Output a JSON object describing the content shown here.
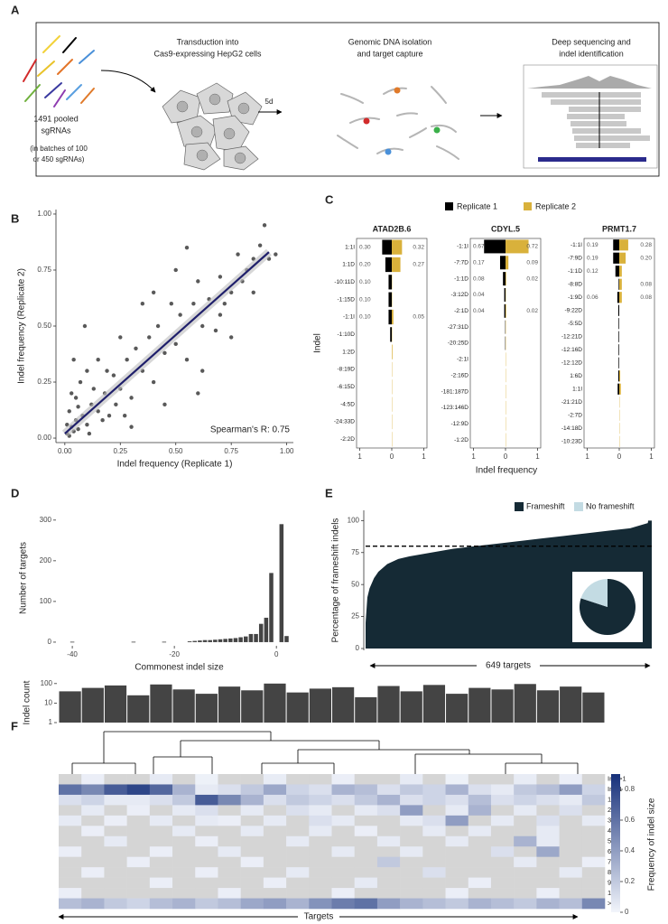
{
  "panel_labels": [
    "A",
    "B",
    "C",
    "D",
    "E",
    "F"
  ],
  "diagram": {
    "pool": [
      "1491 pooled",
      "sgRNAs"
    ],
    "batches": [
      "(in batches of 100",
      "or 450 sgRNAs)"
    ],
    "transduction": [
      "Transduction into",
      "Cas9-expressing HepG2 cells"
    ],
    "time": "5d",
    "capture": [
      "Genomic DNA isolation",
      "and target capture"
    ],
    "sequencing": [
      "Deep sequencing and",
      "indel identification"
    ]
  },
  "chart_data": [
    {
      "type": "scatter",
      "color": "#222222",
      "x": [
        0.01,
        0.02,
        0.03,
        0.04,
        0.05,
        0.06,
        0.08,
        0.1,
        0.12,
        0.02,
        0.03,
        0.05,
        0.07,
        0.1,
        0.04,
        0.09,
        0.15,
        0.18,
        0.2,
        0.22,
        0.25,
        0.28,
        0.3,
        0.32,
        0.35,
        0.38,
        0.4,
        0.42,
        0.45,
        0.48,
        0.5,
        0.52,
        0.55,
        0.58,
        0.6,
        0.62,
        0.65,
        0.68,
        0.7,
        0.72,
        0.75,
        0.78,
        0.8,
        0.82,
        0.85,
        0.88,
        0.9,
        0.92,
        0.3,
        0.45,
        0.6,
        0.75,
        0.5,
        0.55,
        0.35,
        0.25,
        0.15,
        0.01,
        0.06,
        0.11,
        0.13,
        0.17,
        0.19,
        0.23,
        0.27,
        0.4,
        0.62,
        0.7,
        0.85,
        0.95
      ],
      "y": [
        0.02,
        0.01,
        0.05,
        0.03,
        0.08,
        0.04,
        0.1,
        0.06,
        0.15,
        0.12,
        0.2,
        0.18,
        0.25,
        0.3,
        0.35,
        0.5,
        0.12,
        0.2,
        0.1,
        0.28,
        0.22,
        0.35,
        0.18,
        0.4,
        0.3,
        0.45,
        0.25,
        0.5,
        0.38,
        0.6,
        0.42,
        0.55,
        0.35,
        0.6,
        0.7,
        0.5,
        0.62,
        0.48,
        0.72,
        0.6,
        0.65,
        0.82,
        0.7,
        0.75,
        0.8,
        0.86,
        0.95,
        0.8,
        0.05,
        0.15,
        0.2,
        0.45,
        0.75,
        0.85,
        0.6,
        0.45,
        0.35,
        0.06,
        0.14,
        0.02,
        0.22,
        0.08,
        0.3,
        0.15,
        0.1,
        0.65,
        0.3,
        0.55,
        0.65,
        0.82
      ],
      "fit": {
        "x": [
          0,
          0.92
        ],
        "y": [
          0.02,
          0.83
        ],
        "color": "#1f1f6b"
      },
      "xlim": [
        -0.04,
        1.03
      ],
      "ylim": [
        -0.02,
        1.02
      ],
      "xticks": [
        {
          "value": 0,
          "label": "0.00"
        },
        0.25,
        {
          "value": 0.5,
          "label": "0.50"
        },
        0.75,
        {
          "value": 1,
          "label": "1.00"
        }
      ],
      "yticks": [
        {
          "value": 0,
          "label": "0.00"
        },
        0.25,
        {
          "value": 0.5,
          "label": "0.50"
        },
        0.75,
        {
          "value": 1,
          "label": "1.00"
        }
      ],
      "xlabel": "Indel frequency (Replicate 1)",
      "ylabel": "Indel frequency (Replicate 2)",
      "annotation": "Spearman's R: 0.75"
    },
    {
      "type": "butterfly_bar",
      "xlabel": "Indel frequency",
      "ylabel": "Indel",
      "series": [
        {
          "name": "Replicate 1",
          "color": "#000000"
        },
        {
          "name": "Replicate 2",
          "color": "#d9b13b"
        }
      ],
      "xlim": [
        -1.1,
        1.1
      ],
      "xticks": [
        {
          "value": -1,
          "label": "1"
        },
        0,
        1
      ],
      "panels": [
        {
          "title": "ATAD2B.6",
          "categories": [
            "1:1I",
            "1:1D",
            "-10:11D",
            "-1:15D",
            "-1:1I",
            "-1:10D",
            "1:2D",
            "-8:19D",
            "-6:15D",
            "-4:5D",
            "-24:33D",
            "-2:2D"
          ],
          "values": [
            [
              0.3,
              0.2,
              0.1,
              0.1,
              0.1,
              0.05,
              0,
              0,
              0,
              0,
              0,
              0
            ],
            [
              0.32,
              0.27,
              0.01,
              0.01,
              0.05,
              0.01,
              0.02,
              0.01,
              0.01,
              0.01,
              0.01,
              0.01
            ]
          ],
          "value_labels": [
            [
              "0.30",
              "0.20",
              "0.10",
              "0.10",
              "0.10",
              null,
              null,
              null,
              null,
              null,
              null,
              null
            ],
            [
              "0.32",
              "0.27",
              null,
              null,
              "0.05",
              null,
              null,
              null,
              null,
              null,
              null,
              null
            ]
          ]
        },
        {
          "title": "CDYL.5",
          "categories": [
            "-1:1I",
            "-7:7D",
            "-1:1D",
            "-3:12D",
            "-2:1D",
            "-27:31D",
            "-20:25D",
            "-2:1I",
            "-2:16D",
            "-181:187D",
            "-123:146D",
            "-12:9D",
            "-1:2D"
          ],
          "values": [
            [
              0.67,
              0.17,
              0.08,
              0.04,
              0.04,
              0.01,
              0.01,
              0,
              0,
              0,
              0,
              0,
              0
            ],
            [
              0.72,
              0.09,
              0.02,
              0.01,
              0.02,
              0.01,
              0.01,
              0.01,
              0.01,
              0.01,
              0.01,
              0.01,
              0.01
            ]
          ],
          "value_labels": [
            [
              "0.67",
              "0.17",
              "0.08",
              "0.04",
              "0.04",
              null,
              null,
              null,
              null,
              null,
              null,
              null,
              null
            ],
            [
              "0.72",
              "0.09",
              "0.02",
              null,
              "0.02",
              null,
              null,
              null,
              null,
              null,
              null,
              null,
              null
            ]
          ]
        },
        {
          "title": "PRMT1.7",
          "categories": [
            "-1:1I",
            "-7:9D",
            "-1:1D",
            "-8:8D",
            "-1:9D",
            "-9:22D",
            "-5:5D",
            "-12:21D",
            "-12:16D",
            "-12:12D",
            "1:6D",
            "1:1I",
            "-21:21D",
            "-2:7D",
            "-14:18D",
            "-10:23D"
          ],
          "values": [
            [
              0.19,
              0.19,
              0.12,
              0.02,
              0.06,
              0.03,
              0.02,
              0.02,
              0.02,
              0.02,
              0.03,
              0.05,
              0,
              0,
              0,
              0
            ],
            [
              0.28,
              0.2,
              0.08,
              0.08,
              0.08,
              0,
              0,
              0,
              0,
              0,
              0.03,
              0.05,
              0.01,
              0.01,
              0.01,
              0.01
            ]
          ],
          "value_labels": [
            [
              "0.19",
              "0.19",
              "0.12",
              null,
              "0.06",
              null,
              null,
              null,
              null,
              null,
              null,
              null,
              null,
              null,
              null,
              null
            ],
            [
              "0.28",
              "0.20",
              null,
              "0.08",
              "0.08",
              null,
              null,
              null,
              null,
              null,
              null,
              null,
              null,
              null,
              null,
              null
            ]
          ]
        }
      ]
    },
    {
      "type": "bar",
      "color": "#444444",
      "x": [
        -40,
        -28,
        -22,
        -17,
        -16,
        -15,
        -14,
        -13,
        -12,
        -11,
        -10,
        -9,
        -8,
        -7,
        -6,
        -5,
        -4,
        -3,
        -2,
        -1,
        1,
        2
      ],
      "values": [
        1,
        1,
        1,
        2,
        3,
        4,
        5,
        5,
        6,
        7,
        8,
        9,
        10,
        12,
        14,
        20,
        20,
        45,
        60,
        170,
        290,
        15
      ],
      "xlim": [
        -43.2,
        5.1
      ],
      "ylim": [
        -9,
        324
      ],
      "xticks": [
        -40,
        -20,
        0
      ],
      "yticks": [
        0,
        100,
        200,
        300
      ],
      "xlabel": "Commonest indel size",
      "ylabel": "Number of targets"
    },
    {
      "type": "area",
      "color": "#152a35",
      "x": [
        1,
        5,
        10,
        20,
        30,
        50,
        75,
        100,
        150,
        200,
        250,
        300,
        350,
        400,
        450,
        500,
        550,
        600,
        620,
        640,
        641,
        649
      ],
      "values": [
        20,
        40,
        47,
        55,
        60,
        66,
        70,
        72,
        75,
        78,
        80,
        82,
        84,
        86,
        88,
        90,
        92,
        94,
        96,
        98,
        100,
        100
      ],
      "xlim": [
        1,
        649
      ],
      "ylim": [
        -1.4,
        108
      ],
      "yticks": [
        0,
        25,
        50,
        75,
        100
      ],
      "reference_line": 80,
      "series": [
        {
          "name": "Frameshift",
          "color": "#152a35"
        },
        {
          "name": "No frameshift",
          "color": "#c3dbe3"
        }
      ],
      "pie": {
        "values": [
          80,
          20
        ]
      },
      "ylabel": "Percentage of frameshift indels",
      "annotation": "649 targets"
    },
    {
      "type": "heatmap",
      "xlabel": "Targets",
      "missing_color": "#d5d5d5",
      "categories": [
        "Ins >1",
        "Ins 1",
        "1",
        "2",
        "3",
        "4",
        "5",
        "6",
        "7",
        "8",
        "9",
        "10",
        ">10"
      ],
      "values": [
        [
          null,
          0.03,
          null,
          null,
          0.05,
          null,
          0.02,
          null,
          null,
          0.04,
          null,
          null,
          0.03,
          null,
          null,
          0.05,
          null,
          0.02,
          null,
          null,
          0.04,
          null,
          0.03,
          null
        ],
        [
          0.6,
          0.5,
          0.7,
          0.8,
          0.65,
          0.3,
          0.05,
          0.1,
          0.2,
          0.35,
          0.15,
          0.1,
          0.3,
          0.25,
          0.1,
          0.2,
          0.15,
          0.3,
          0.1,
          0.05,
          0.2,
          0.25,
          0.4,
          0.15
        ],
        [
          0.1,
          0.15,
          0.05,
          0.05,
          0.1,
          0.2,
          0.7,
          0.5,
          0.3,
          0.1,
          0.2,
          0.15,
          0.1,
          0.2,
          0.3,
          0.1,
          0.15,
          0.1,
          0.25,
          0.1,
          0.15,
          0.1,
          0.05,
          0.2
        ],
        [
          null,
          0.05,
          null,
          0.03,
          null,
          0.05,
          0.1,
          null,
          0.05,
          null,
          0.1,
          0.05,
          null,
          0.05,
          0.1,
          0.4,
          null,
          0.05,
          0.3,
          null,
          0.05,
          null,
          0.1,
          null
        ],
        [
          0.05,
          null,
          0.03,
          null,
          0.05,
          null,
          0.05,
          0.03,
          null,
          0.05,
          null,
          0.1,
          0.05,
          null,
          null,
          0.05,
          0.1,
          0.4,
          null,
          0.05,
          null,
          0.1,
          null,
          0.05
        ],
        [
          null,
          0.03,
          null,
          null,
          null,
          0.05,
          null,
          null,
          0.05,
          null,
          null,
          0.05,
          null,
          0.03,
          null,
          null,
          0.05,
          null,
          0.05,
          null,
          null,
          0.05,
          null,
          null
        ],
        [
          null,
          null,
          0.05,
          null,
          null,
          null,
          0.03,
          null,
          null,
          null,
          0.05,
          null,
          null,
          null,
          0.05,
          null,
          null,
          0.05,
          null,
          null,
          0.3,
          0.05,
          null,
          null
        ],
        [
          0.03,
          null,
          null,
          null,
          0.03,
          null,
          null,
          0.05,
          null,
          null,
          null,
          null,
          0.05,
          null,
          null,
          0.05,
          null,
          null,
          null,
          0.1,
          null,
          0.35,
          null,
          null
        ],
        [
          null,
          null,
          null,
          0.03,
          null,
          null,
          null,
          null,
          0.03,
          null,
          null,
          null,
          null,
          null,
          0.2,
          null,
          null,
          null,
          null,
          null,
          0.05,
          null,
          null,
          0.03
        ],
        [
          null,
          0.03,
          null,
          null,
          null,
          null,
          0.03,
          null,
          null,
          null,
          0.05,
          null,
          null,
          null,
          null,
          null,
          0.1,
          null,
          null,
          null,
          null,
          null,
          0.05,
          null
        ],
        [
          null,
          null,
          null,
          null,
          0.03,
          null,
          null,
          null,
          null,
          0.03,
          null,
          null,
          null,
          0.05,
          null,
          null,
          null,
          null,
          0.03,
          null,
          null,
          null,
          null,
          null
        ],
        [
          0.03,
          null,
          null,
          null,
          null,
          null,
          null,
          0.03,
          null,
          null,
          null,
          null,
          0.03,
          null,
          null,
          null,
          null,
          0.03,
          null,
          null,
          null,
          0.03,
          null,
          null
        ],
        [
          0.25,
          0.3,
          0.2,
          0.15,
          0.25,
          0.3,
          0.2,
          0.25,
          0.35,
          0.4,
          0.3,
          0.45,
          0.55,
          0.6,
          0.4,
          0.3,
          0.25,
          0.2,
          0.3,
          0.25,
          0.2,
          0.3,
          0.25,
          0.5
        ]
      ],
      "count": {
        "values": [
          40,
          60,
          80,
          25,
          90,
          50,
          30,
          70,
          45,
          100,
          35,
          55,
          65,
          20,
          75,
          40,
          85,
          30,
          60,
          50,
          95,
          45,
          70,
          35
        ],
        "color": "#444444",
        "log_scale": true,
        "ylim": [
          1,
          150
        ],
        "yticks": [
          1,
          10,
          100
        ],
        "ylabel": "Indel count"
      },
      "colorbar": {
        "lim": [
          0,
          0.9
        ],
        "ticks": [
          0,
          0.2,
          0.4,
          0.6,
          0.8
        ],
        "colors": [
          "#f2f5fb",
          "#16307a"
        ],
        "label": "Frequency of indel size"
      }
    }
  ]
}
